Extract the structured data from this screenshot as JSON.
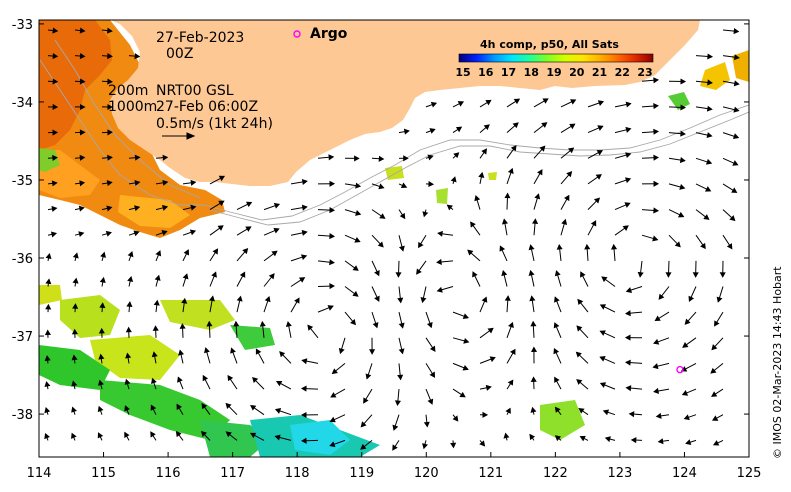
{
  "map": {
    "lon_ticks": [
      "114",
      "115",
      "116",
      "117",
      "118",
      "119",
      "120",
      "121",
      "122",
      "123",
      "124",
      "125"
    ],
    "lat_ticks": [
      "-33",
      "-34",
      "-35",
      "-36",
      "-37",
      "-38"
    ],
    "lon_range": [
      114,
      125
    ],
    "lat_range": [
      -38.55,
      -32.95
    ],
    "land_color": "#fdc894",
    "contour_color": "#a8a8a8"
  },
  "annotations": {
    "date": "27-Feb-2023",
    "hour": "00Z",
    "depth_200": "200m",
    "depth_1000": "1000m",
    "product": "NRT00 GSL",
    "product_time": "27-Feb 06:00Z",
    "scale_arrow": "0.5m/s (1kt 24h)"
  },
  "legend": {
    "argo_label": "Argo",
    "argo_color": "#ff00ff",
    "colorbar_title": "4h comp, p50, All Sats",
    "colorbar_ticks": [
      "15",
      "16",
      "17",
      "18",
      "19",
      "20",
      "21",
      "22",
      "23"
    ],
    "colorbar_colors": [
      "#00007f",
      "#0022ff",
      "#0099ff",
      "#00e5ff",
      "#22ff99",
      "#7fff22",
      "#d4ff00",
      "#ffe500",
      "#ffb000",
      "#ff6a00",
      "#e32800",
      "#8b0000"
    ]
  },
  "argo_floats": [
    {
      "id": "argo-float",
      "lon": 123.93,
      "lat": -37.43
    }
  ],
  "credit": "© IMOS 02-Mar-2023 14:43 Hobart"
}
